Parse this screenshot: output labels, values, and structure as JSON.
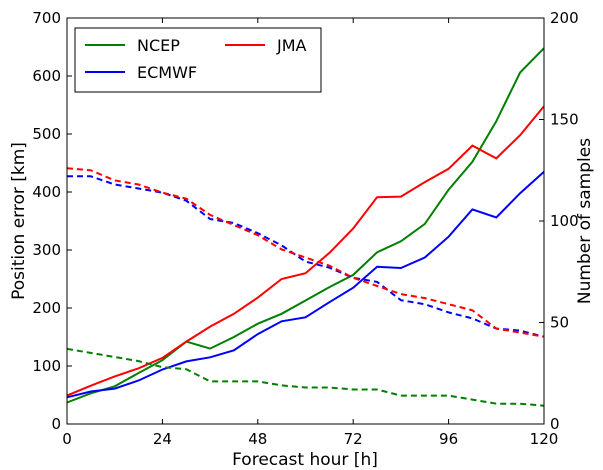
{
  "chart_data": {
    "type": "line",
    "xlabel": "Forecast hour [h]",
    "ylabel_left": "Position error [km]",
    "ylabel_right": "Number of samples",
    "xlim": [
      0,
      120
    ],
    "ylim_left": [
      0,
      700
    ],
    "ylim_right": [
      0,
      200
    ],
    "x_ticks": [
      0,
      24,
      48,
      72,
      96,
      120
    ],
    "y_ticks_left": [
      0,
      100,
      200,
      300,
      400,
      500,
      600,
      700
    ],
    "y_ticks_right": [
      0,
      50,
      100,
      150,
      200
    ],
    "grid": false,
    "legend_placement": "top-left",
    "x": [
      0,
      6,
      12,
      18,
      24,
      30,
      36,
      42,
      48,
      54,
      60,
      66,
      72,
      78,
      84,
      90,
      96,
      102,
      108,
      114,
      120
    ],
    "series": [
      {
        "name": "NCEP",
        "color": "#008000",
        "style": "solid",
        "axis": "left",
        "values": [
          37,
          53,
          65,
          88,
          110,
          142,
          130,
          150,
          173,
          190,
          213,
          236,
          257,
          296,
          315,
          345,
          404,
          452,
          522,
          606,
          648
        ]
      },
      {
        "name": "ECMWF",
        "color": "#0000ff",
        "style": "solid",
        "axis": "left",
        "values": [
          46,
          56,
          61,
          75,
          94,
          108,
          115,
          127,
          155,
          177,
          184,
          210,
          235,
          271,
          269,
          287,
          323,
          370,
          356,
          398,
          435
        ]
      },
      {
        "name": "JMA",
        "color": "#ff0000",
        "style": "solid",
        "axis": "left",
        "values": [
          49,
          66,
          82,
          96,
          114,
          142,
          168,
          190,
          218,
          250,
          260,
          295,
          337,
          391,
          392,
          417,
          440,
          480,
          458,
          498,
          548
        ]
      },
      {
        "name": "NCEP samples",
        "color": "#008000",
        "style": "dashed",
        "axis": "right",
        "values": [
          37,
          35,
          33,
          31,
          28,
          27,
          21,
          21,
          21,
          19,
          18,
          18,
          17,
          17,
          14,
          14,
          14,
          12,
          10,
          10,
          9
        ]
      },
      {
        "name": "ECMWF samples",
        "color": "#0000ff",
        "style": "dashed",
        "axis": "right",
        "values": [
          122,
          122,
          118,
          116,
          114,
          110,
          101,
          99,
          94,
          88,
          80,
          77,
          72,
          70,
          61,
          59,
          55,
          52,
          47,
          46,
          43
        ]
      },
      {
        "name": "JMA samples",
        "color": "#ff0000",
        "style": "dashed",
        "axis": "right",
        "values": [
          126,
          125,
          120,
          118,
          114,
          111,
          103,
          98,
          93,
          86,
          82,
          78,
          72,
          68,
          64,
          62,
          59,
          56,
          47,
          45,
          43
        ]
      }
    ],
    "legend": [
      {
        "label": "NCEP",
        "color": "#008000"
      },
      {
        "label": "ECMWF",
        "color": "#0000ff"
      },
      {
        "label": "JMA",
        "color": "#ff0000"
      }
    ]
  }
}
